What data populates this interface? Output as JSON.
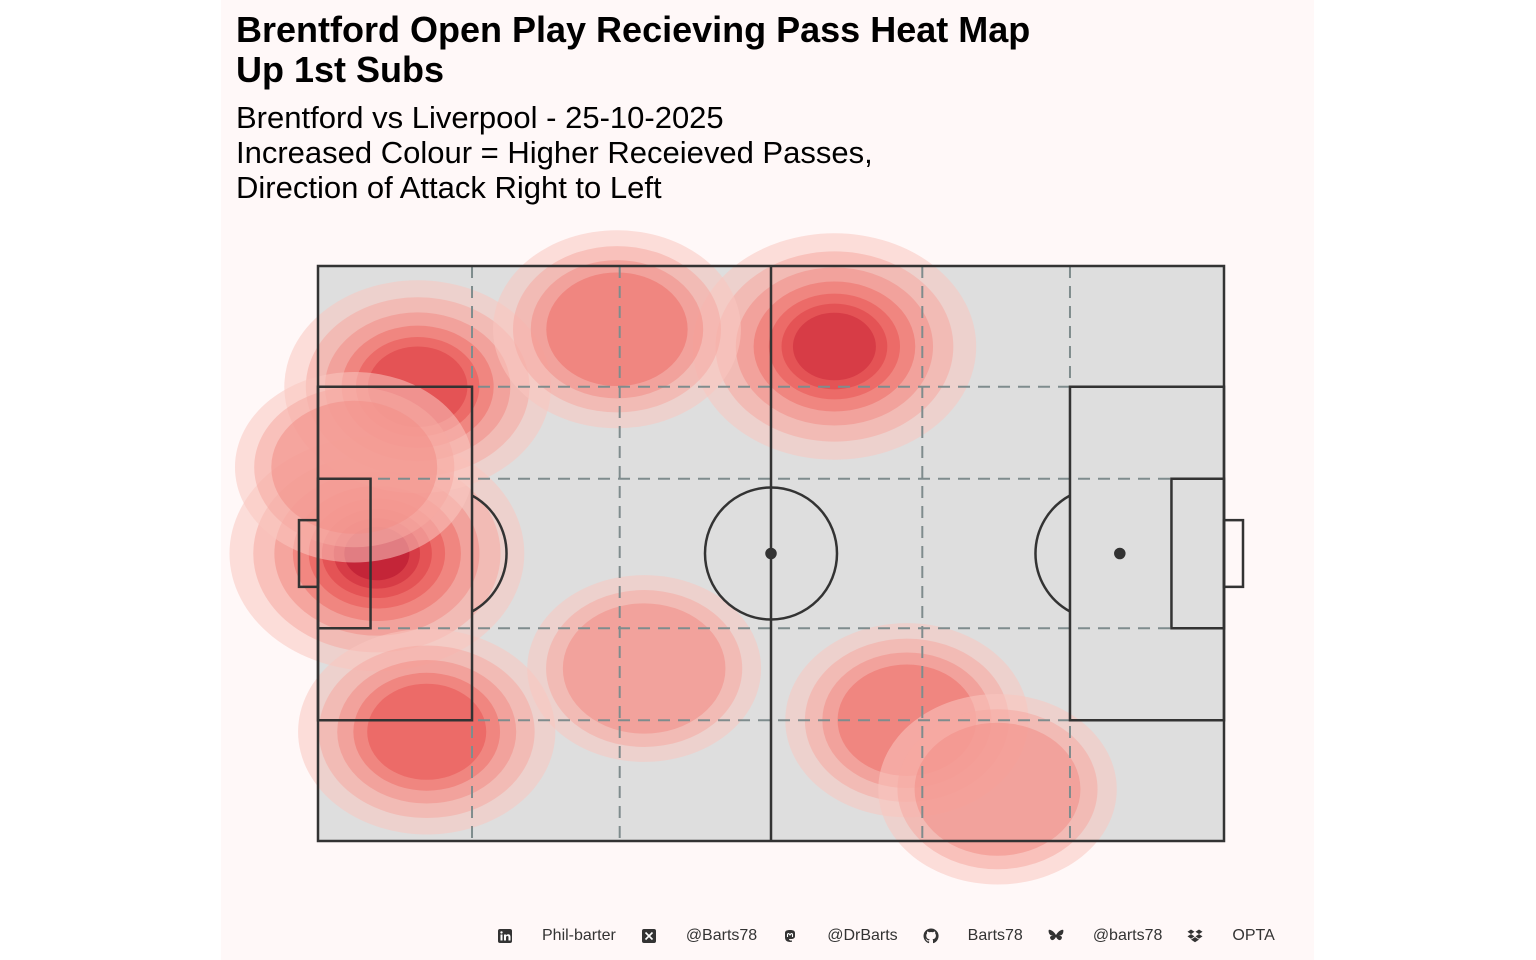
{
  "title_lines": [
    "Brentford Open Play Recieving Pass Heat Map",
    "Up 1st Subs"
  ],
  "subtitle_lines": [
    "Brentford vs Liverpool - 25-10-2025",
    "Increased Colour = Higher Receieved Passes,",
    "Direction of Attack Right to Left"
  ],
  "footer": [
    {
      "icon": "linkedin-icon",
      "text": "Phil-barter"
    },
    {
      "icon": "x-twitter-icon",
      "text": "@Barts78"
    },
    {
      "icon": "mastodon-icon",
      "text": "@DrBarts"
    },
    {
      "icon": "github-icon",
      "text": "Barts78"
    },
    {
      "icon": "bluesky-butterfly-icon",
      "text": "@barts78"
    },
    {
      "icon": "dropbox-icon",
      "text": "OPTA"
    }
  ],
  "colors": {
    "pitch_fill": "#dedede",
    "pitch_line": "#333333",
    "grid_line": "#7f8c8d",
    "panel_bg": "#fff8f8",
    "density_low": "#f9c6c0",
    "density_high": "#b5122e"
  },
  "chart_data": {
    "type": "heatmap",
    "kind": "2d-density-contours",
    "xlim": [
      0,
      100
    ],
    "ylim": [
      0,
      100
    ],
    "levels": 8,
    "hotspots": [
      {
        "x": 6.5,
        "y": 50,
        "weight": 1.0
      },
      {
        "x": 11,
        "y": 79,
        "weight": 0.7
      },
      {
        "x": 57,
        "y": 86,
        "weight": 0.88
      },
      {
        "x": 33,
        "y": 89,
        "weight": 0.5
      },
      {
        "x": 12,
        "y": 19,
        "weight": 0.6
      },
      {
        "x": 36,
        "y": 30,
        "weight": 0.35
      },
      {
        "x": 65,
        "y": 21,
        "weight": 0.45
      },
      {
        "x": 75,
        "y": 9,
        "weight": 0.4
      },
      {
        "x": 4,
        "y": 65,
        "weight": 0.4
      }
    ]
  }
}
